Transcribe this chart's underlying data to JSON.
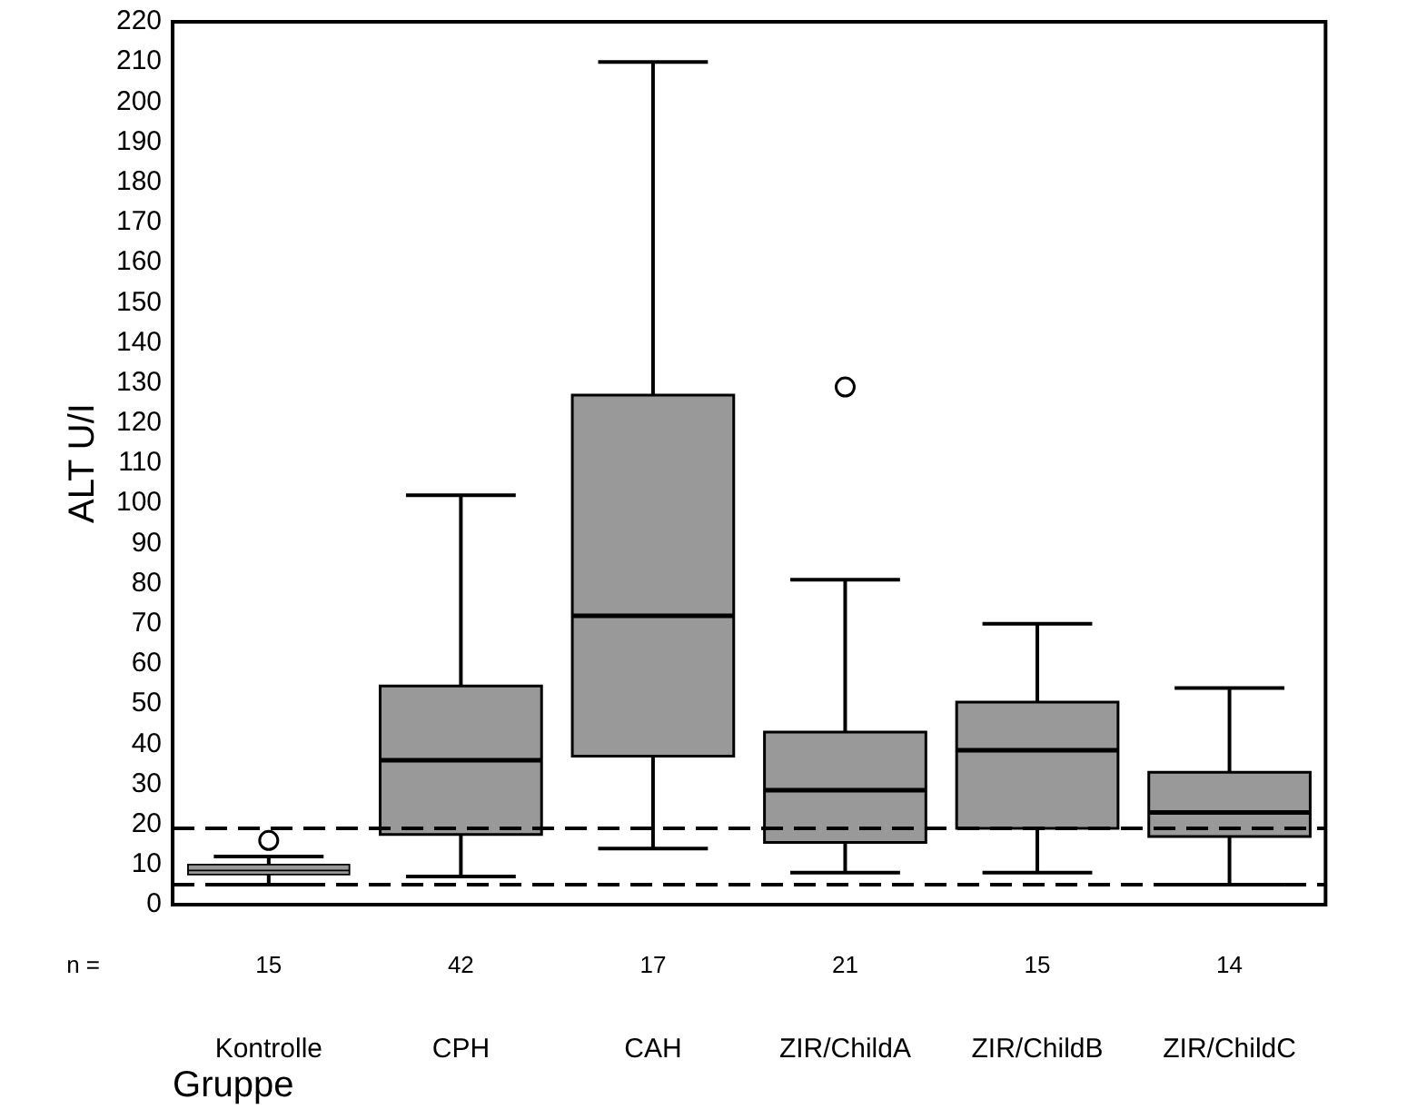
{
  "chart_data": {
    "type": "box",
    "xlabel": "Gruppe",
    "ylabel": "ALT U/I",
    "categories": [
      "Kontrolle",
      "CPH",
      "CAH",
      "ZIR/ChildA",
      "ZIR/ChildB",
      "ZIR/ChildC"
    ],
    "color": "#999999",
    "boxes": [
      {
        "low": 5,
        "q1": 7.5,
        "median": 8.5,
        "q3": 10,
        "high": 12,
        "outliers": [
          16
        ]
      },
      {
        "low": 7,
        "q1": 17.5,
        "median": 36,
        "q3": 54.5,
        "high": 102
      },
      {
        "low": 14,
        "q1": 37,
        "median": 72,
        "q3": 127,
        "high": 210
      },
      {
        "low": 8,
        "q1": 15.5,
        "median": 28.5,
        "q3": 43,
        "high": 81,
        "outliers": [
          129
        ]
      },
      {
        "low": 8,
        "q1": 19,
        "median": 38.5,
        "q3": 50.5,
        "high": 70
      },
      {
        "low": 5,
        "q1": 17,
        "median": 23,
        "q3": 33,
        "high": 54
      }
    ],
    "ylim": [
      0,
      220
    ],
    "yticks": [
      0,
      10,
      20,
      30,
      40,
      50,
      60,
      70,
      80,
      90,
      100,
      110,
      120,
      130,
      140,
      150,
      160,
      170,
      180,
      190,
      200,
      210,
      220
    ],
    "ref_lines": [
      {
        "axis": "y",
        "value": 19,
        "line_style": "dashed"
      },
      {
        "axis": "y",
        "value": 5,
        "line_style": "dashed"
      }
    ],
    "annotations": [
      "n =",
      "15",
      "42",
      "17",
      "21",
      "15",
      "14"
    ],
    "grid": false,
    "legend": false,
    "marker": "circle"
  }
}
